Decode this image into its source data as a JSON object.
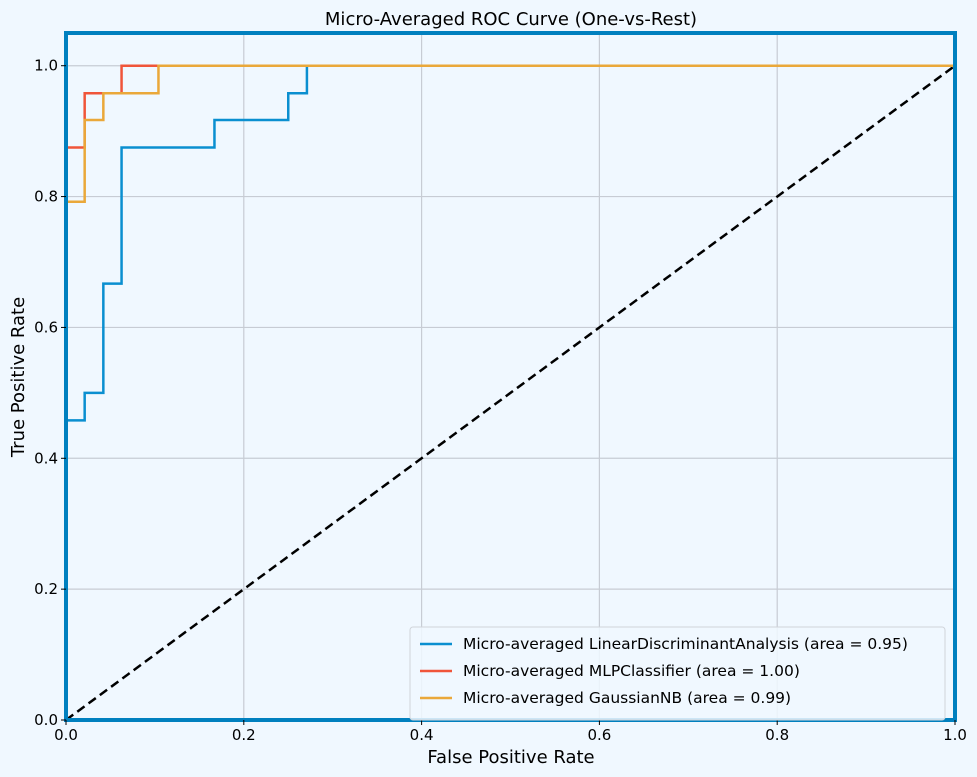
{
  "chart_data": {
    "type": "line",
    "title": "Micro-Averaged ROC Curve (One-vs-Rest)",
    "xlabel": "False Positive Rate",
    "ylabel": "True Positive Rate",
    "xlim": [
      0.0,
      1.0
    ],
    "ylim": [
      0.0,
      1.05
    ],
    "xticks": [
      0.0,
      0.2,
      0.4,
      0.6,
      0.8,
      1.0
    ],
    "xtick_labels": [
      "0.0",
      "0.2",
      "0.4",
      "0.6",
      "0.8",
      "1.0"
    ],
    "yticks": [
      0.0,
      0.2,
      0.4,
      0.6,
      0.8,
      1.0
    ],
    "ytick_labels": [
      "0.0",
      "0.2",
      "0.4",
      "0.6",
      "0.8",
      "1.0"
    ],
    "grid": true,
    "legend_position": "lower-right",
    "series": [
      {
        "name": "Micro-averaged LinearDiscriminantAnalysis (area = 0.95)",
        "color": "#0a8fd0",
        "x": [
          0.0,
          0.0,
          0.021,
          0.021,
          0.042,
          0.042,
          0.0625,
          0.0625,
          0.167,
          0.167,
          0.25,
          0.25,
          0.271,
          0.271,
          1.0
        ],
        "y": [
          0.0,
          0.458,
          0.458,
          0.5,
          0.5,
          0.667,
          0.667,
          0.875,
          0.875,
          0.917,
          0.917,
          0.958,
          0.958,
          1.0,
          1.0
        ]
      },
      {
        "name": "Micro-averaged MLPClassifier (area = 1.00)",
        "color": "#f0553a",
        "x": [
          0.0,
          0.0,
          0.021,
          0.021,
          0.0625,
          0.0625,
          1.0
        ],
        "y": [
          0.0,
          0.875,
          0.875,
          0.958,
          0.958,
          1.0,
          1.0
        ]
      },
      {
        "name": "Micro-averaged GaussianNB (area = 0.99)",
        "color": "#eaa83a",
        "x": [
          0.0,
          0.0,
          0.021,
          0.021,
          0.042,
          0.042,
          0.104,
          0.104,
          1.0
        ],
        "y": [
          0.0,
          0.792,
          0.792,
          0.917,
          0.917,
          0.958,
          0.958,
          1.0,
          1.0
        ]
      }
    ],
    "reference_line": {
      "x": [
        0.0,
        1.0
      ],
      "y": [
        0.0,
        1.0
      ],
      "color": "#000000",
      "style": "dashed"
    },
    "colors": {
      "background": "#f0f8ff",
      "frame": "#0080bf",
      "grid": "#c7ccd4"
    }
  }
}
